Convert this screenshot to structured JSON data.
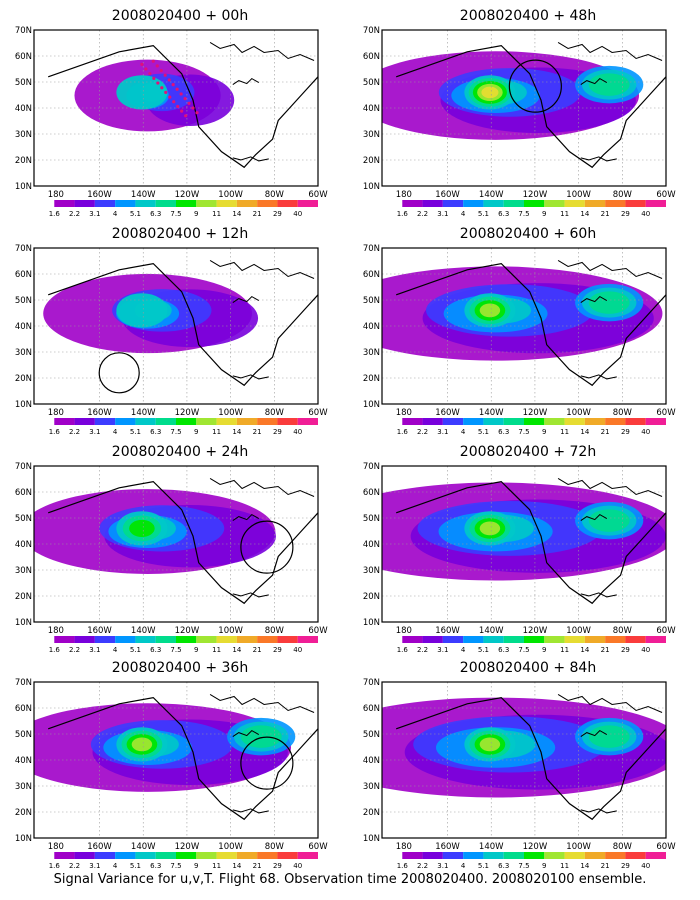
{
  "colorbar": {
    "labels": [
      "1.6",
      "2.2",
      "3.1",
      "4",
      "5.1",
      "6.3",
      "7.5",
      "9",
      "11",
      "14",
      "21",
      "29",
      "40"
    ],
    "colors": [
      "#a000c8",
      "#7800dc",
      "#3c3cff",
      "#0096ff",
      "#00c8c8",
      "#00dc8c",
      "#00e600",
      "#a0e632",
      "#e6dc32",
      "#f0aa28",
      "#fa7828",
      "#fa3c3c",
      "#f01e96"
    ]
  },
  "axes": {
    "lon_labels": [
      "180",
      "160W",
      "140W",
      "120W",
      "100W",
      "80W",
      "60W"
    ],
    "lat_labels": [
      "10N",
      "20N",
      "30N",
      "40N",
      "50N",
      "60N",
      "70N"
    ]
  },
  "panels": [
    {
      "title": "2008020400 + 00h",
      "intensity": 0.15,
      "extent": 0.25,
      "circle": null,
      "dots": true
    },
    {
      "title": "2008020400 + 12h",
      "intensity": 0.2,
      "extent": 0.45,
      "circle": "central-pacific",
      "dots": false
    },
    {
      "title": "2008020400 + 24h",
      "intensity": 0.45,
      "extent": 0.6,
      "circle": "gulf",
      "dots": false
    },
    {
      "title": "2008020400 + 36h",
      "intensity": 0.65,
      "extent": 0.7,
      "circle": "gulf",
      "dots": false
    },
    {
      "title": "2008020400 + 48h",
      "intensity": 0.75,
      "extent": 0.7,
      "circle": "pacific-northwest",
      "dots": false
    },
    {
      "title": "2008020400 + 60h",
      "intensity": 0.7,
      "extent": 0.85,
      "circle": null,
      "dots": false
    },
    {
      "title": "2008020400 + 72h",
      "intensity": 0.65,
      "extent": 0.95,
      "circle": null,
      "dots": false
    },
    {
      "title": "2008020400 + 84h",
      "intensity": 0.7,
      "extent": 1.0,
      "circle": null,
      "dots": false
    }
  ],
  "caption": "Signal Variance for u,v,T. Flight 68. Observation time 2008020400. 2008020100 ensemble."
}
